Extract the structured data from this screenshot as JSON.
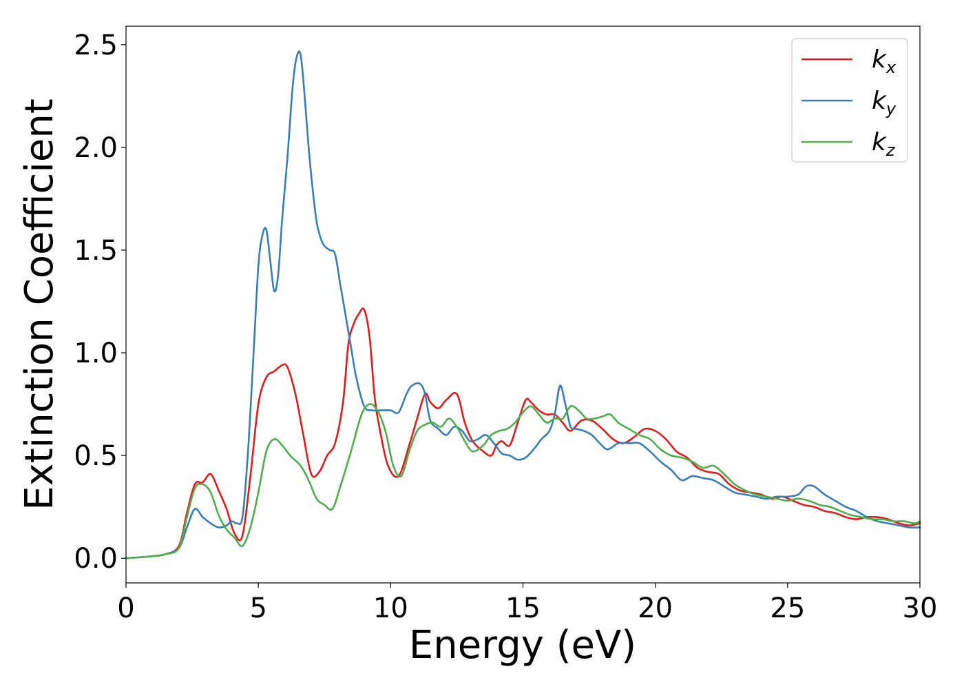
{
  "chart_data": {
    "type": "line",
    "xlabel": "Energy (eV)",
    "ylabel": "Extinction Coefficient",
    "xlim": [
      0,
      30
    ],
    "ylim": [
      -0.12,
      2.59
    ],
    "xticks": [
      "0",
      "5",
      "10",
      "15",
      "20",
      "25",
      "30"
    ],
    "yticks": [
      "0.0",
      "0.5",
      "1.0",
      "1.5",
      "2.0",
      "2.5"
    ],
    "grid": false,
    "legend_position": "top-right",
    "series": [
      {
        "name": "k",
        "subscript": "x",
        "color": "#e41a1c",
        "x": [
          0,
          1,
          1.5,
          2,
          2.3,
          2.6,
          2.9,
          3.2,
          3.5,
          3.8,
          4.1,
          4.4,
          4.7,
          5.0,
          5.3,
          5.6,
          5.9,
          6.1,
          6.4,
          6.7,
          7.0,
          7.3,
          7.6,
          7.9,
          8.2,
          8.4,
          8.6,
          8.8,
          9.0,
          9.2,
          9.4,
          9.6,
          9.9,
          10.3,
          10.7,
          11.0,
          11.3,
          11.5,
          11.8,
          12.1,
          12.5,
          12.8,
          13.1,
          13.5,
          13.8,
          14.0,
          14.2,
          14.5,
          14.8,
          15.1,
          15.3,
          15.6,
          15.9,
          16.2,
          16.5,
          16.8,
          17.2,
          17.6,
          18.0,
          18.4,
          18.8,
          19.2,
          19.6,
          20.0,
          20.4,
          20.8,
          21.2,
          21.6,
          22.0,
          22.4,
          22.8,
          23.2,
          23.6,
          24.0,
          24.4,
          24.8,
          25.2,
          25.6,
          26.0,
          26.4,
          26.8,
          27.2,
          27.6,
          28.0,
          28.4,
          28.8,
          29.2,
          29.6,
          30.0
        ],
        "values": [
          0.0,
          0.01,
          0.02,
          0.06,
          0.22,
          0.36,
          0.37,
          0.41,
          0.33,
          0.24,
          0.12,
          0.11,
          0.4,
          0.75,
          0.88,
          0.91,
          0.94,
          0.93,
          0.8,
          0.6,
          0.41,
          0.42,
          0.5,
          0.56,
          0.76,
          1.04,
          1.14,
          1.19,
          1.21,
          1.08,
          0.78,
          0.62,
          0.45,
          0.4,
          0.55,
          0.68,
          0.8,
          0.76,
          0.73,
          0.77,
          0.8,
          0.66,
          0.57,
          0.52,
          0.5,
          0.55,
          0.57,
          0.55,
          0.66,
          0.77,
          0.76,
          0.72,
          0.7,
          0.7,
          0.66,
          0.62,
          0.67,
          0.67,
          0.63,
          0.58,
          0.56,
          0.59,
          0.63,
          0.62,
          0.58,
          0.52,
          0.49,
          0.44,
          0.42,
          0.41,
          0.36,
          0.33,
          0.32,
          0.31,
          0.29,
          0.3,
          0.28,
          0.26,
          0.25,
          0.23,
          0.22,
          0.2,
          0.19,
          0.2,
          0.2,
          0.19,
          0.17,
          0.16,
          0.17
        ]
      },
      {
        "name": "k",
        "subscript": "y",
        "color": "#377eb8",
        "x": [
          0,
          1,
          1.5,
          2,
          2.3,
          2.6,
          2.9,
          3.2,
          3.5,
          3.8,
          4.0,
          4.2,
          4.4,
          4.6,
          4.8,
          5.0,
          5.15,
          5.3,
          5.45,
          5.6,
          5.75,
          5.9,
          6.1,
          6.3,
          6.45,
          6.6,
          6.75,
          6.9,
          7.05,
          7.2,
          7.35,
          7.5,
          7.7,
          7.9,
          8.1,
          8.3,
          8.5,
          8.7,
          9.0,
          9.3,
          9.6,
          10.0,
          10.3,
          10.6,
          10.8,
          11.1,
          11.3,
          11.5,
          11.8,
          12.1,
          12.4,
          12.7,
          13.0,
          13.3,
          13.6,
          13.9,
          14.2,
          14.5,
          14.8,
          15.1,
          15.4,
          15.7,
          16.0,
          16.2,
          16.4,
          16.6,
          16.8,
          17.0,
          17.3,
          17.6,
          17.9,
          18.2,
          18.6,
          19.0,
          19.4,
          19.8,
          20.2,
          20.6,
          21.0,
          21.4,
          21.8,
          22.2,
          22.6,
          23.0,
          23.4,
          23.8,
          24.2,
          24.6,
          25.0,
          25.4,
          25.7,
          26.0,
          26.4,
          26.8,
          27.2,
          27.6,
          28.0,
          28.4,
          28.8,
          29.2,
          29.6,
          30.0
        ],
        "values": [
          0.0,
          0.01,
          0.02,
          0.05,
          0.15,
          0.24,
          0.2,
          0.17,
          0.15,
          0.16,
          0.18,
          0.17,
          0.2,
          0.5,
          0.95,
          1.42,
          1.57,
          1.6,
          1.45,
          1.3,
          1.38,
          1.65,
          1.95,
          2.3,
          2.44,
          2.45,
          2.25,
          2.0,
          1.8,
          1.64,
          1.56,
          1.52,
          1.5,
          1.48,
          1.33,
          1.18,
          1.03,
          0.88,
          0.74,
          0.72,
          0.72,
          0.72,
          0.71,
          0.8,
          0.84,
          0.85,
          0.8,
          0.67,
          0.63,
          0.6,
          0.64,
          0.62,
          0.57,
          0.58,
          0.6,
          0.56,
          0.51,
          0.5,
          0.48,
          0.49,
          0.53,
          0.58,
          0.62,
          0.7,
          0.84,
          0.75,
          0.64,
          0.63,
          0.62,
          0.6,
          0.56,
          0.53,
          0.56,
          0.56,
          0.56,
          0.52,
          0.47,
          0.43,
          0.38,
          0.4,
          0.39,
          0.38,
          0.35,
          0.32,
          0.31,
          0.3,
          0.29,
          0.3,
          0.3,
          0.31,
          0.35,
          0.35,
          0.31,
          0.28,
          0.25,
          0.23,
          0.2,
          0.18,
          0.17,
          0.16,
          0.15,
          0.15
        ]
      },
      {
        "name": "k",
        "subscript": "z",
        "color": "#4daf4a",
        "x": [
          0,
          1,
          1.5,
          2,
          2.3,
          2.6,
          2.9,
          3.2,
          3.5,
          3.8,
          4.1,
          4.4,
          4.7,
          5.0,
          5.3,
          5.6,
          5.9,
          6.2,
          6.6,
          6.9,
          7.2,
          7.5,
          7.8,
          8.1,
          8.5,
          8.9,
          9.2,
          9.5,
          9.8,
          10.1,
          10.4,
          10.7,
          11.0,
          11.3,
          11.6,
          11.9,
          12.2,
          12.5,
          12.8,
          13.1,
          13.5,
          13.8,
          14.1,
          14.4,
          14.7,
          15.0,
          15.3,
          15.6,
          15.9,
          16.2,
          16.5,
          16.8,
          17.1,
          17.4,
          17.7,
          18.0,
          18.3,
          18.6,
          19.0,
          19.4,
          19.8,
          20.2,
          20.6,
          21.0,
          21.4,
          21.8,
          22.2,
          22.6,
          23.0,
          23.4,
          23.8,
          24.2,
          24.6,
          25.0,
          25.4,
          25.8,
          26.2,
          26.6,
          27.0,
          27.4,
          27.8,
          28.2,
          28.6,
          29.0,
          29.4,
          29.8,
          30.0
        ],
        "values": [
          0.0,
          0.01,
          0.02,
          0.05,
          0.2,
          0.34,
          0.36,
          0.32,
          0.21,
          0.14,
          0.1,
          0.06,
          0.15,
          0.32,
          0.52,
          0.58,
          0.55,
          0.5,
          0.45,
          0.38,
          0.29,
          0.26,
          0.24,
          0.35,
          0.52,
          0.7,
          0.75,
          0.72,
          0.62,
          0.45,
          0.4,
          0.52,
          0.62,
          0.65,
          0.66,
          0.64,
          0.68,
          0.64,
          0.57,
          0.52,
          0.55,
          0.6,
          0.62,
          0.63,
          0.66,
          0.71,
          0.74,
          0.7,
          0.66,
          0.68,
          0.68,
          0.74,
          0.72,
          0.68,
          0.68,
          0.69,
          0.7,
          0.66,
          0.63,
          0.6,
          0.58,
          0.53,
          0.5,
          0.49,
          0.47,
          0.44,
          0.45,
          0.41,
          0.36,
          0.33,
          0.31,
          0.3,
          0.29,
          0.28,
          0.29,
          0.28,
          0.26,
          0.25,
          0.23,
          0.21,
          0.2,
          0.19,
          0.19,
          0.18,
          0.18,
          0.17,
          0.18
        ]
      }
    ]
  }
}
